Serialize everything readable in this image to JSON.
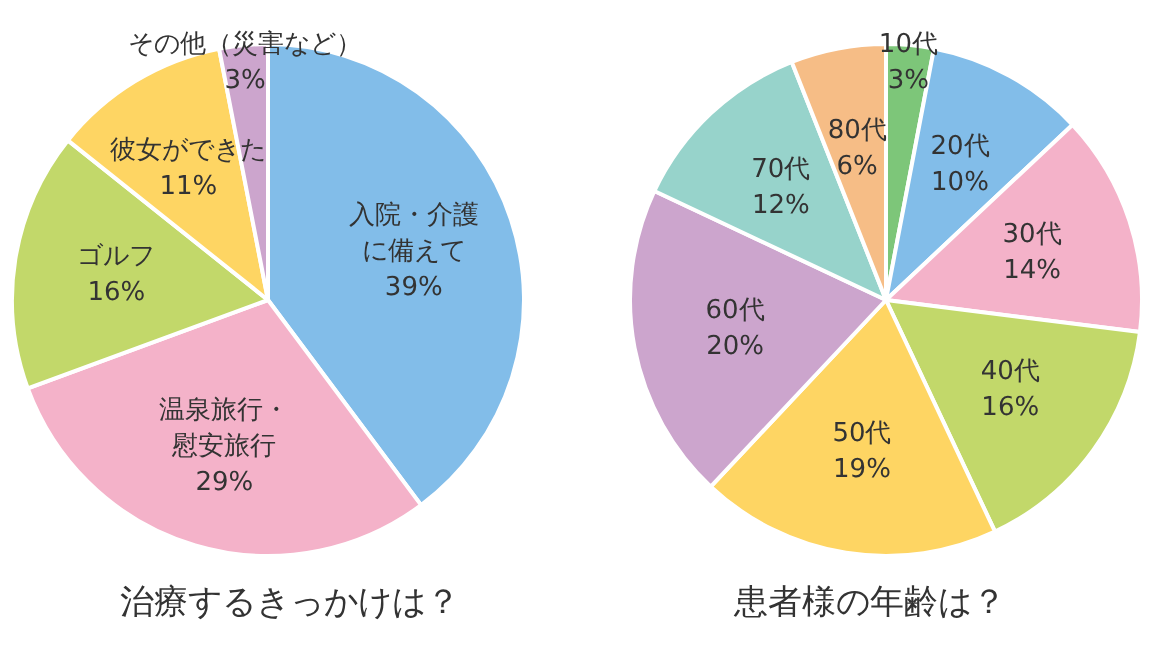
{
  "chart_data": [
    {
      "type": "pie",
      "title": "治療するきっかけは？",
      "categories": [
        "入院・介護に備えて",
        "温泉旅行・慰安旅行",
        "ゴルフ",
        "彼女ができた",
        "その他（災害など）"
      ],
      "values": [
        39,
        29,
        16,
        11,
        3
      ],
      "value_labels": [
        "39%",
        "29%",
        "16%",
        "11%",
        "3%"
      ],
      "colors": [
        "#82bde9",
        "#f4b2c9",
        "#c2d86a",
        "#fed563",
        "#cca5cd"
      ]
    },
    {
      "type": "pie",
      "title": "患者様の年齢は？",
      "categories": [
        "10代",
        "20代",
        "30代",
        "40代",
        "50代",
        "60代",
        "70代",
        "80代"
      ],
      "values": [
        3,
        10,
        14,
        16,
        19,
        20,
        12,
        6
      ],
      "value_labels": [
        "3%",
        "10%",
        "14%",
        "16%",
        "19%",
        "20%",
        "12%",
        "6%"
      ],
      "colors": [
        "#7dc679",
        "#82bde9",
        "#f4b2c9",
        "#c2d86a",
        "#fed563",
        "#cca5cd",
        "#97d3cb",
        "#f6bd86"
      ]
    }
  ]
}
